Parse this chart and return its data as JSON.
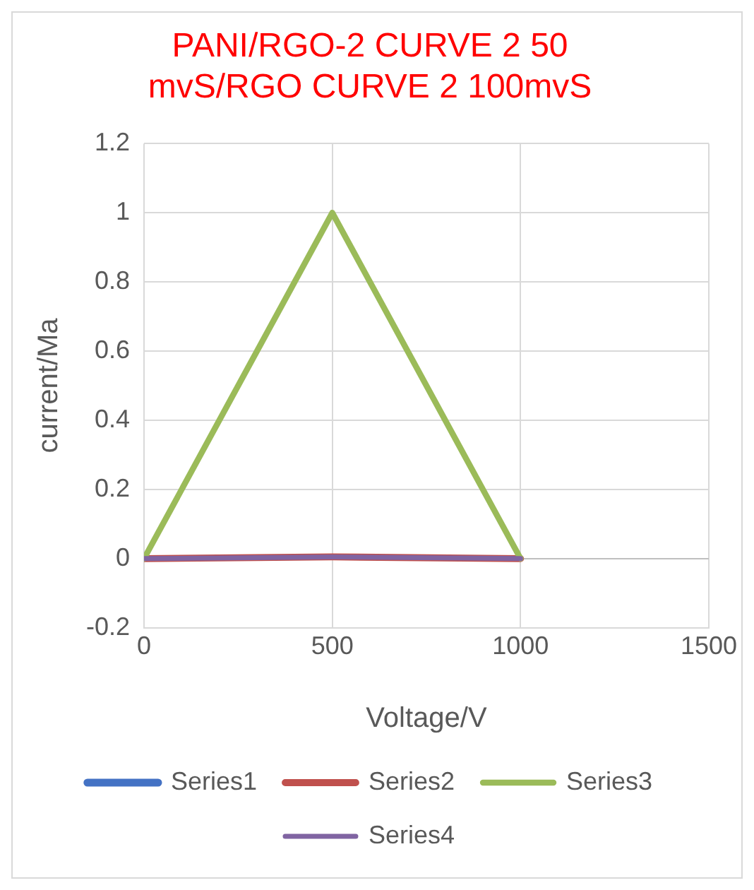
{
  "chart_data": {
    "type": "line",
    "title": [
      "PANI/RGO-2 CURVE 2 50",
      "mvS/RGO CURVE 2 100mvS"
    ],
    "xlabel": "Voltage/V",
    "ylabel": "current/Ma",
    "x": [
      0,
      500,
      1000
    ],
    "series": [
      {
        "name": "Series1",
        "color": "#4472c4",
        "values": [
          null,
          null,
          null
        ]
      },
      {
        "name": "Series2",
        "color": "#c0504d",
        "values": [
          0,
          0.005,
          0
        ]
      },
      {
        "name": "Series3",
        "color": "#9bbb59",
        "values": [
          0,
          1,
          0
        ]
      },
      {
        "name": "Series4",
        "color": "#8064a2",
        "values": [
          0,
          0.005,
          0
        ]
      }
    ],
    "xlim": [
      0,
      1500
    ],
    "xticks": [
      0,
      500,
      1000,
      1500
    ],
    "ylim": [
      -0.2,
      1.2
    ],
    "yticks": [
      -0.2,
      0,
      0.2,
      0.4,
      0.6,
      0.8,
      1,
      1.2
    ],
    "grid": true,
    "legend": "bottom",
    "marker": "none",
    "line_style": "solid"
  }
}
